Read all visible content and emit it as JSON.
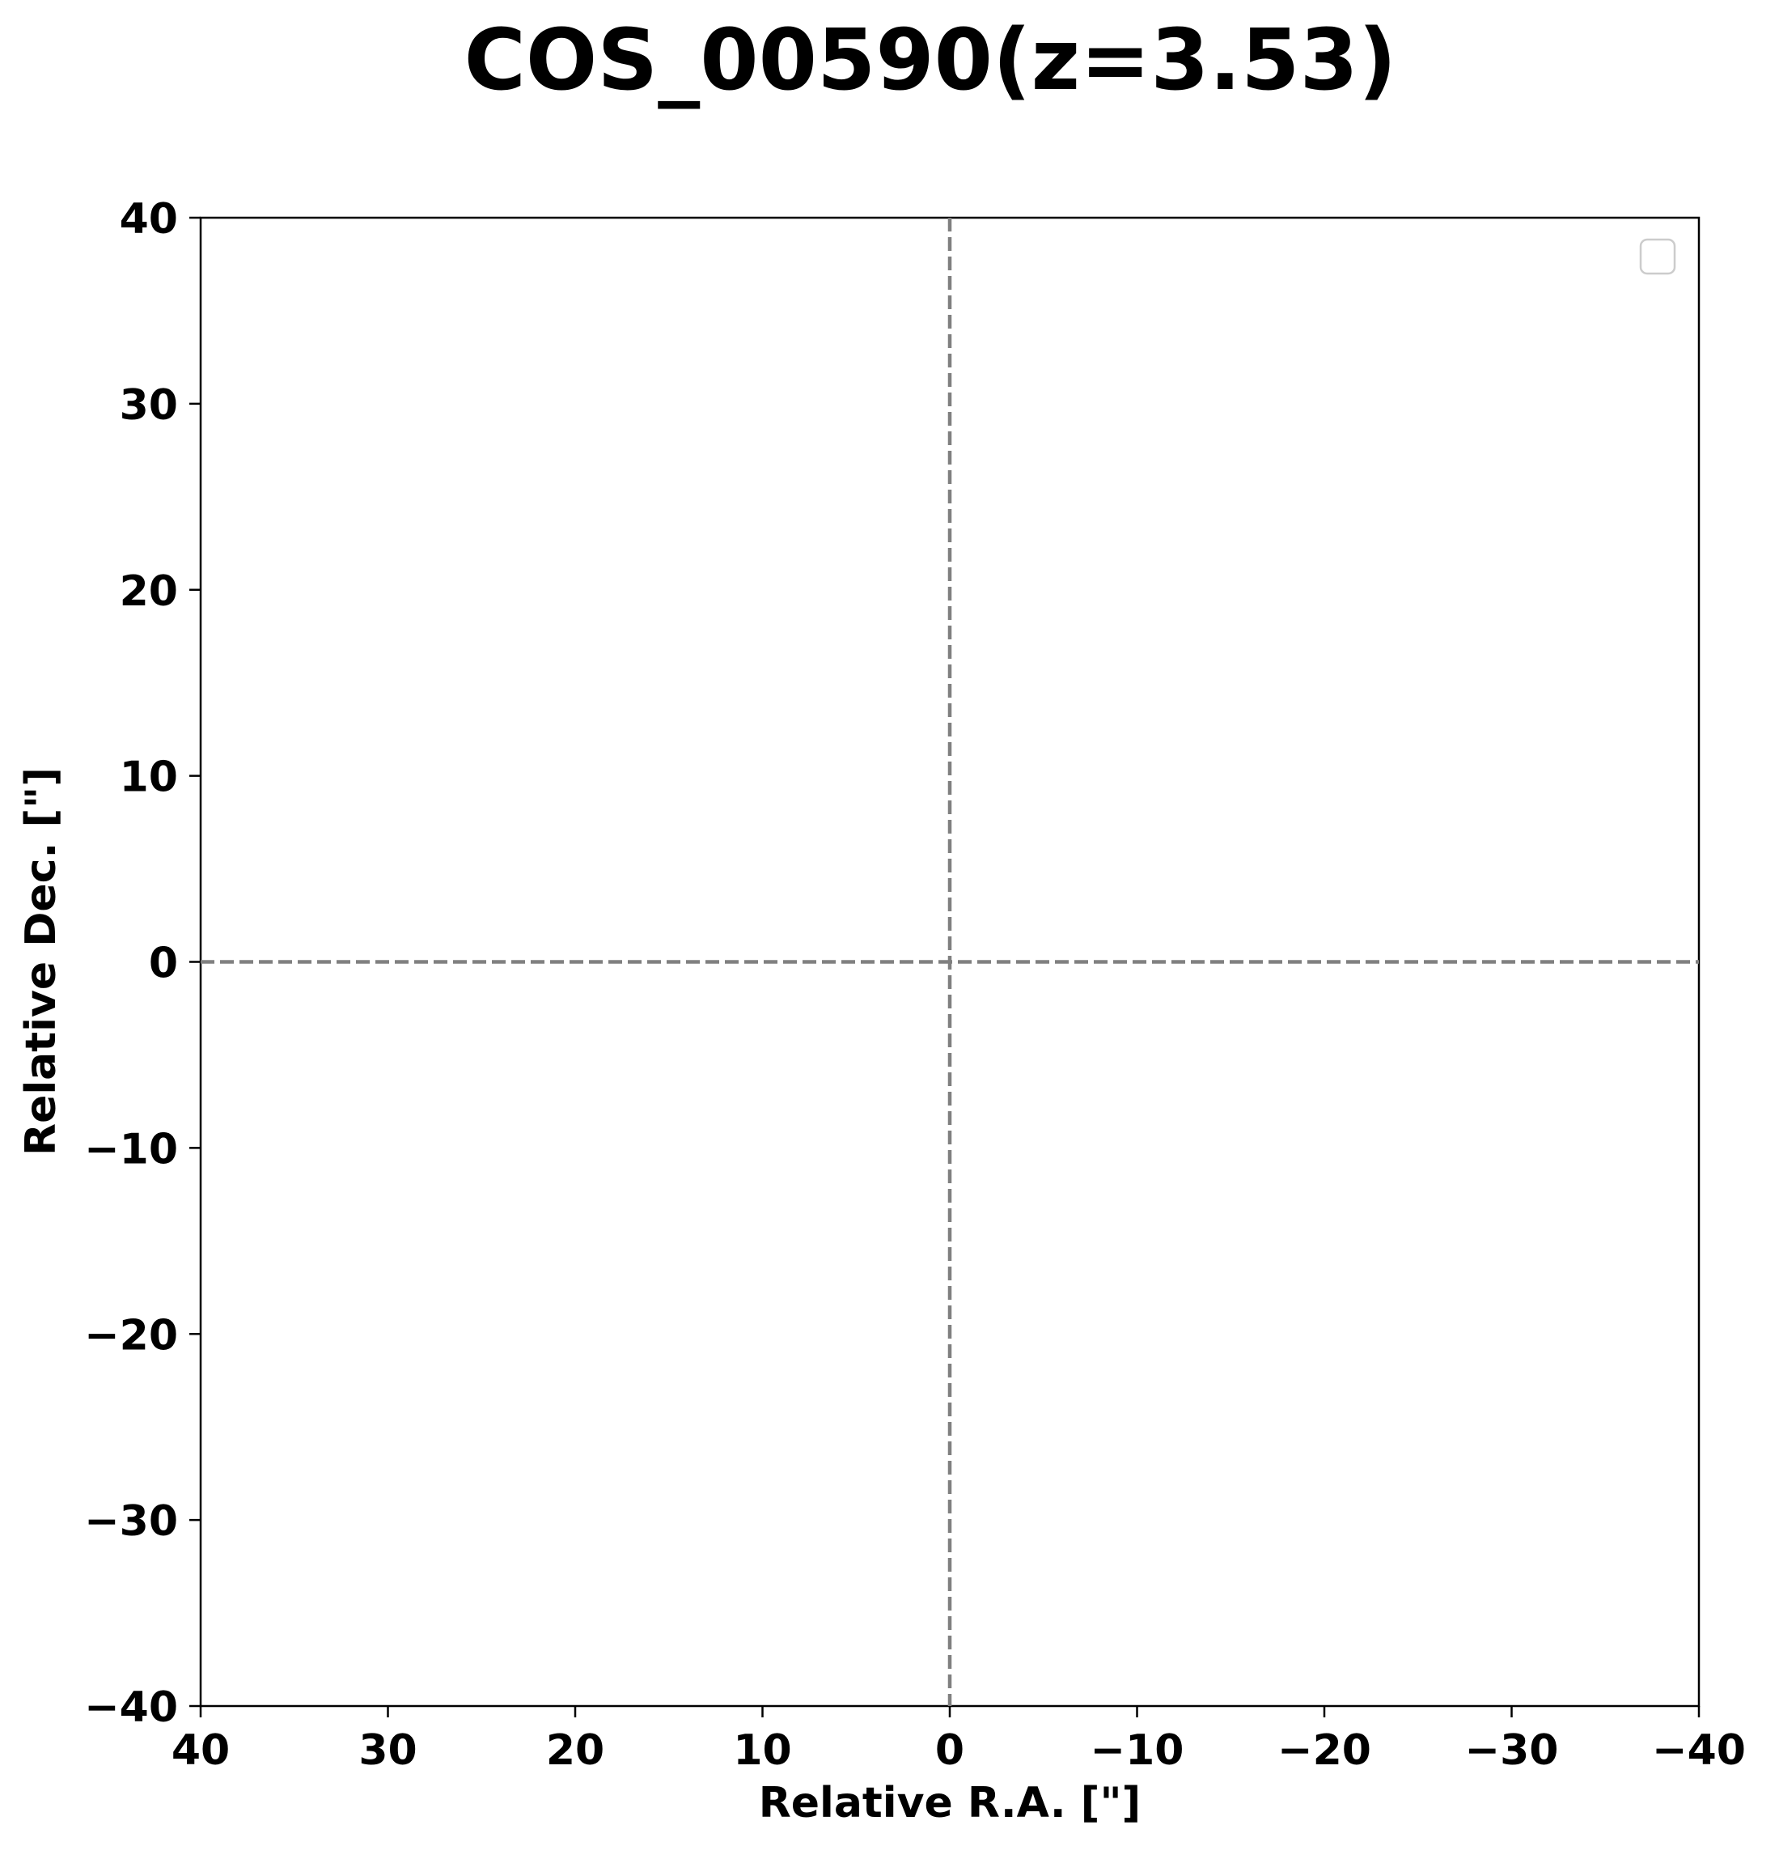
{
  "chart_data": {
    "type": "scatter",
    "title": "COS_00590(z=3.53)",
    "xlabel": "Relative R.A. [\"]",
    "ylabel": "Relative Dec. [\"]",
    "xlim": [
      40,
      -40
    ],
    "ylim": [
      -40,
      40
    ],
    "x_ticks": [
      40,
      30,
      20,
      10,
      0,
      -10,
      -20,
      -30,
      -40
    ],
    "y_ticks": [
      40,
      30,
      20,
      10,
      0,
      -10,
      -20,
      -30,
      -40
    ],
    "x_tick_labels": [
      "40",
      "30",
      "20",
      "10",
      "0",
      "−10",
      "−20",
      "−30",
      "−40"
    ],
    "y_tick_labels": [
      "40",
      "30",
      "20",
      "10",
      "0",
      "−10",
      "−20",
      "−30",
      "−40"
    ],
    "reference_lines": [
      {
        "orientation": "vertical",
        "value": 0,
        "style": "dashed",
        "color": "#808080"
      },
      {
        "orientation": "horizontal",
        "value": 0,
        "style": "dashed",
        "color": "#808080"
      }
    ],
    "series": [],
    "grid": false,
    "legend": {
      "placement": "top-right",
      "entries": []
    }
  },
  "colors": {
    "axes": "#000000",
    "reference_line": "#808080",
    "legend_frame": "#cccccc",
    "background": "#ffffff"
  }
}
